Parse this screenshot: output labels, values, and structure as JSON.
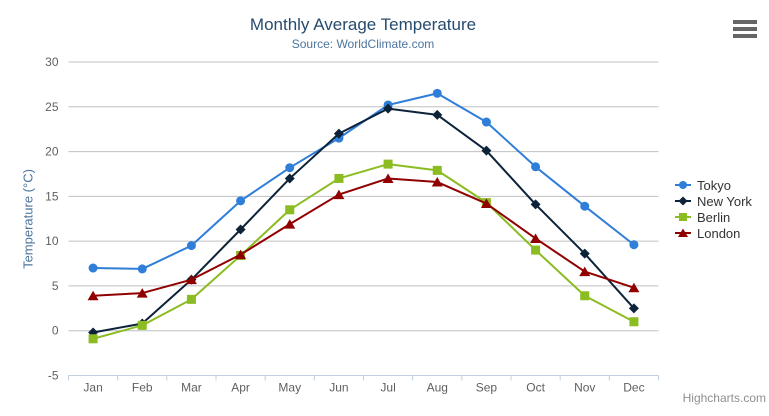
{
  "chart_data": {
    "type": "line",
    "title": "Monthly Average Temperature",
    "subtitle": "Source: WorldClimate.com",
    "categories": [
      "Jan",
      "Feb",
      "Mar",
      "Apr",
      "May",
      "Jun",
      "Jul",
      "Aug",
      "Sep",
      "Oct",
      "Nov",
      "Dec"
    ],
    "series": [
      {
        "name": "Tokyo",
        "color": "#2f7ed8",
        "marker": "circle",
        "values": [
          7.0,
          6.9,
          9.5,
          14.5,
          18.2,
          21.5,
          25.2,
          26.5,
          23.3,
          18.3,
          13.9,
          9.6
        ]
      },
      {
        "name": "New York",
        "color": "#0d233a",
        "marker": "diamond",
        "values": [
          -0.2,
          0.8,
          5.7,
          11.3,
          17.0,
          22.0,
          24.8,
          24.1,
          20.1,
          14.1,
          8.6,
          2.5
        ]
      },
      {
        "name": "Berlin",
        "color": "#8bbc21",
        "marker": "square",
        "values": [
          -0.9,
          0.6,
          3.5,
          8.4,
          13.5,
          17.0,
          18.6,
          17.9,
          14.3,
          9.0,
          3.9,
          1.0
        ]
      },
      {
        "name": "London",
        "color": "#910000",
        "marker": "triangle",
        "values": [
          3.9,
          4.2,
          5.7,
          8.5,
          11.9,
          15.2,
          17.0,
          16.6,
          14.2,
          10.3,
          6.6,
          4.8
        ]
      }
    ],
    "xlabel": "",
    "ylabel": "Temperature (°C)",
    "ylim": [
      -5,
      30
    ],
    "ytick_step": 5,
    "grid": true,
    "legend_position": "right"
  },
  "credits": "Highcharts.com",
  "colors": {
    "title": "#274b6d",
    "subtitle": "#4d759e",
    "axis_title": "#4d759e",
    "axis_label": "#606060",
    "grid_line": "#c0c0c0",
    "axis_line": "#c0d0e0",
    "legend_text": "#333333",
    "credits_text": "#909090",
    "menu_icon": "#666666"
  }
}
